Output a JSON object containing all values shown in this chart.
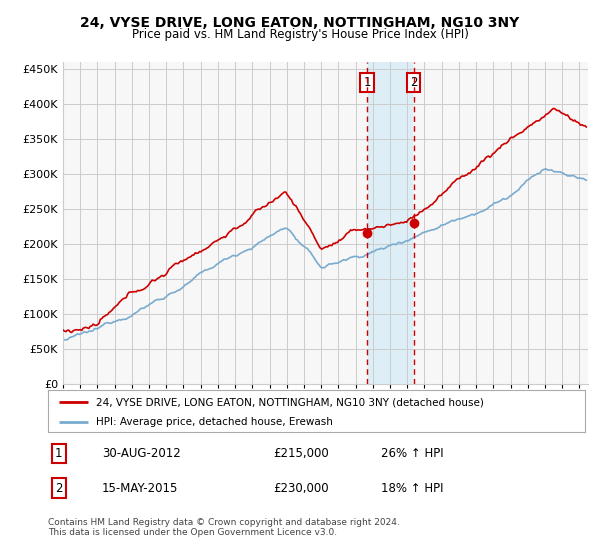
{
  "title": "24, VYSE DRIVE, LONG EATON, NOTTINGHAM, NG10 3NY",
  "subtitle": "Price paid vs. HM Land Registry's House Price Index (HPI)",
  "legend_line1": "24, VYSE DRIVE, LONG EATON, NOTTINGHAM, NG10 3NY (detached house)",
  "legend_line2": "HPI: Average price, detached house, Erewash",
  "footnote": "Contains HM Land Registry data © Crown copyright and database right 2024.\nThis data is licensed under the Open Government Licence v3.0.",
  "annotation1_label": "1",
  "annotation1_date": "30-AUG-2012",
  "annotation1_price": "£215,000",
  "annotation1_hpi": "26% ↑ HPI",
  "annotation2_label": "2",
  "annotation2_date": "15-MAY-2015",
  "annotation2_price": "£230,000",
  "annotation2_hpi": "18% ↑ HPI",
  "sale1_x": 2012.667,
  "sale1_y": 215000,
  "sale2_x": 2015.375,
  "sale2_y": 230000,
  "red_color": "#cc0000",
  "blue_color": "#7aabcf",
  "shaded_color": "#ddeef7",
  "ylim_low": 0,
  "ylim_high": 460000,
  "xlim_low": 1995,
  "xlim_high": 2025.5,
  "yticks": [
    0,
    50000,
    100000,
    150000,
    200000,
    250000,
    300000,
    350000,
    400000,
    450000
  ],
  "background_color": "#ffffff",
  "grid_color": "#cccccc",
  "chart_bg": "#f7f7f7"
}
